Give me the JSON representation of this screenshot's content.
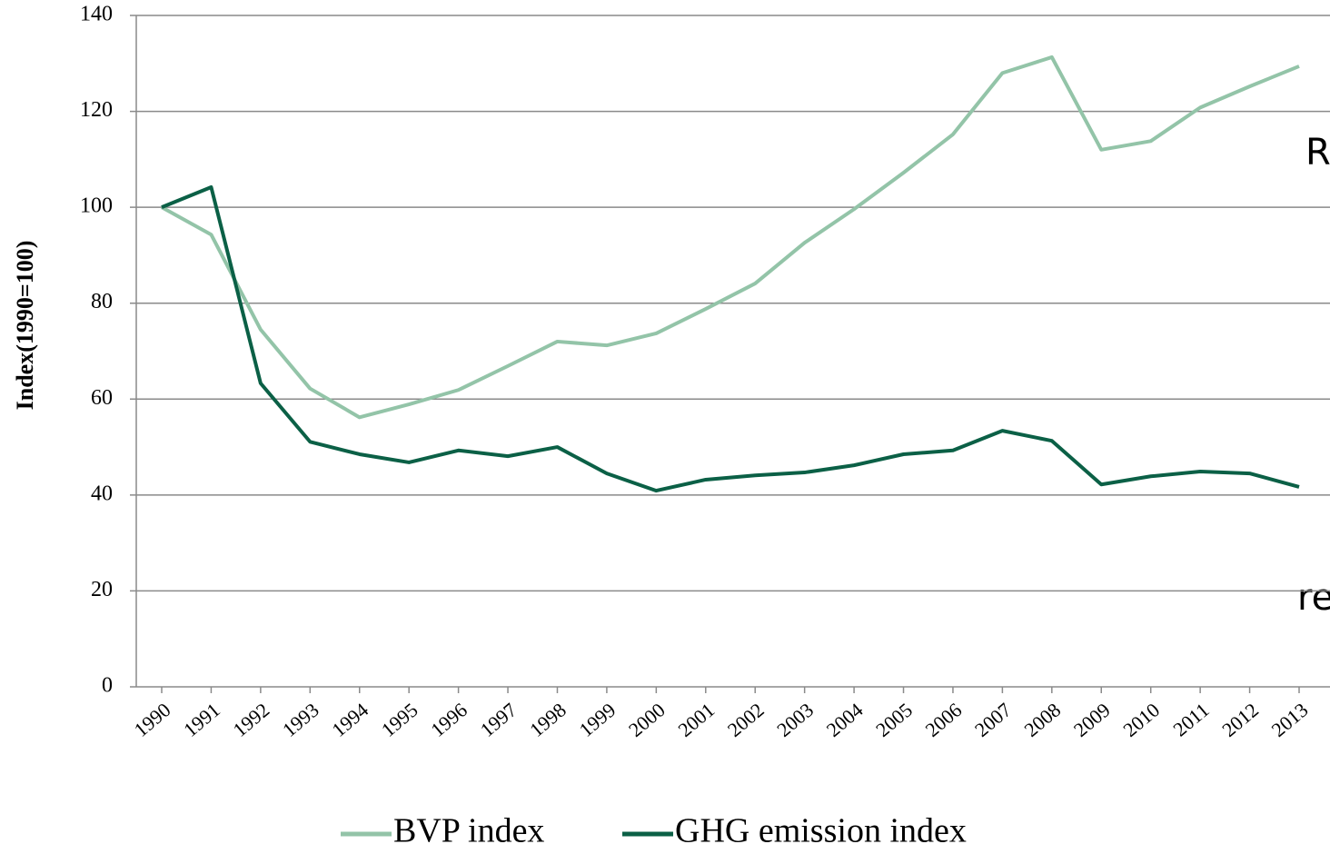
{
  "chart_data": {
    "type": "line",
    "y_label": "Index(1990=100)",
    "categories": [
      "1990",
      "1991",
      "1992",
      "1993",
      "1994",
      "1995",
      "1996",
      "1997",
      "1998",
      "1999",
      "2000",
      "2001",
      "2002",
      "2003",
      "2004",
      "2005",
      "2006",
      "2007",
      "2008",
      "2009",
      "2010",
      "2011",
      "2012",
      "2013"
    ],
    "series": [
      {
        "name": "BVP index",
        "color": "#93c4a8",
        "values": [
          100,
          94.3,
          74.5,
          62.2,
          56.2,
          58.9,
          61.9,
          66.9,
          72,
          71.2,
          73.7,
          78.8,
          84.1,
          92.6,
          99.6,
          107.2,
          115.2,
          128,
          131.3,
          112,
          113.8,
          120.8,
          125.2,
          129.4
        ]
      },
      {
        "name": "GHG emission index",
        "color": "#0b6046",
        "values": [
          100,
          104.2,
          63.3,
          51.1,
          48.5,
          46.8,
          49.3,
          48.1,
          50,
          44.5,
          40.9,
          43.2,
          44.1,
          44.7,
          46.2,
          48.5,
          49.3,
          53.4,
          51.3,
          42.2,
          43.9,
          44.9,
          44.5,
          41.7
        ]
      }
    ],
    "ylim": [
      0,
      140
    ],
    "yticks": [
      0,
      20,
      40,
      60,
      80,
      100,
      120,
      140
    ],
    "grid": true,
    "legend": "bottom",
    "annotations": [
      "R",
      "re"
    ]
  }
}
